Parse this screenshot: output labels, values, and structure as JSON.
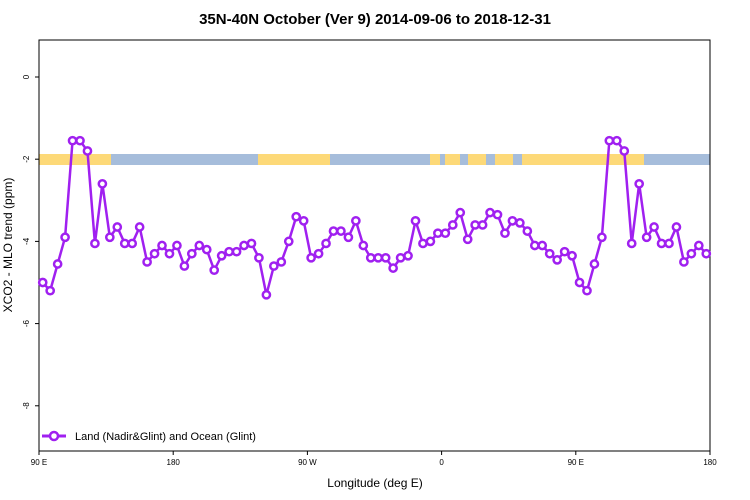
{
  "chart_data": {
    "type": "line",
    "title": "35N-40N October (Ver 9)   2014-09-06 to 2018-12-31",
    "x_label": "Longitude (deg E)",
    "y_label": "XCO2 - MLO trend (ppm)",
    "xlim": [
      90,
      540
    ],
    "ylim": [
      -9.1,
      0.9
    ],
    "xticks": [
      {
        "value": 90,
        "label": "90 E"
      },
      180,
      {
        "value": 270,
        "label": "90 W"
      },
      {
        "value": 360,
        "label": "0"
      },
      {
        "value": 450,
        "label": "90 E"
      },
      {
        "value": 540,
        "label": "180"
      }
    ],
    "yticks": [
      0,
      -2,
      -4,
      -6,
      -8
    ],
    "legend_position": "bottom-left",
    "x": [
      92.5,
      97.5,
      102.5,
      107.5,
      112.5,
      117.5,
      122.5,
      127.5,
      132.5,
      137.5,
      142.5,
      147.5,
      152.5,
      157.5,
      162.5,
      167.5,
      172.5,
      177.5,
      182.5,
      187.5,
      192.5,
      197.5,
      202.5,
      207.5,
      212.5,
      217.5,
      222.5,
      227.5,
      232.5,
      237.5,
      242.5,
      247.5,
      252.5,
      257.5,
      262.5,
      267.5,
      272.5,
      277.5,
      282.5,
      287.5,
      292.5,
      297.5,
      302.5,
      307.5,
      312.5,
      317.5,
      322.5,
      327.5,
      332.5,
      337.5,
      342.5,
      347.5,
      352.5,
      357.5,
      362.5,
      367.5,
      372.5,
      377.5,
      382.5,
      387.5,
      392.5,
      397.5,
      402.5,
      407.5,
      412.5,
      417.5,
      422.5,
      427.5,
      432.5,
      437.5,
      442.5,
      447.5,
      452.5,
      457.5,
      462.5,
      467.5,
      472.5,
      477.5,
      482.5,
      487.5,
      492.5,
      497.5,
      502.5,
      507.5,
      512.5,
      517.5,
      522.5,
      527.5,
      532.5,
      537.5
    ],
    "series": [
      {
        "name": "Land (Nadir&Glint) and Ocean (Glint)",
        "color": "#a020f0",
        "values": [
          -5.0,
          -5.2,
          -4.55,
          -3.9,
          -1.55,
          -1.55,
          -1.8,
          -4.05,
          -2.6,
          -3.9,
          -3.65,
          -4.05,
          -4.05,
          -3.65,
          -4.5,
          -4.3,
          -4.1,
          -4.3,
          -4.1,
          -4.6,
          -4.3,
          -4.1,
          -4.2,
          -4.7,
          -4.35,
          -4.25,
          -4.25,
          -4.1,
          -4.05,
          -4.4,
          -5.3,
          -4.6,
          -4.5,
          -4.0,
          -3.4,
          -3.5,
          -4.4,
          -4.3,
          -4.05,
          -3.75,
          -3.75,
          -3.9,
          -3.5,
          -4.1,
          -4.4,
          -4.4,
          -4.4,
          -4.65,
          -4.4,
          -4.35,
          -3.5,
          -4.05,
          -4.0,
          -3.8,
          -3.8,
          -3.6,
          -3.3,
          -3.95,
          -3.6,
          -3.6,
          -3.3,
          -3.35,
          -3.8,
          -3.5,
          -3.55,
          -3.75,
          -4.1,
          -4.1,
          -4.3,
          -4.45,
          -4.25,
          -4.35,
          -5.0,
          -5.2,
          -4.55,
          -3.9,
          -1.55,
          -1.55,
          -1.8,
          -4.05,
          -2.6,
          -3.9,
          -3.65,
          -4.05,
          -4.05,
          -3.65,
          -4.5,
          -4.3,
          -4.1,
          -4.3
        ]
      }
    ]
  }
}
